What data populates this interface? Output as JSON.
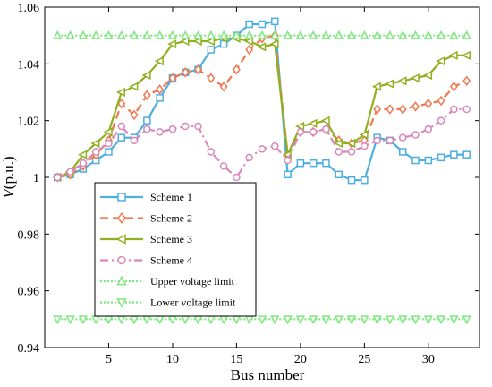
{
  "chart_data": {
    "type": "line",
    "title": "",
    "xlabel": "Bus number",
    "ylabel": "V(p.u.)",
    "xlim": [
      0,
      34
    ],
    "ylim": [
      0.94,
      1.06
    ],
    "xticks": [
      5,
      10,
      15,
      20,
      25,
      30
    ],
    "xtick_labels": [
      "5",
      "10",
      "15",
      "20",
      "25",
      "30"
    ],
    "yticks": [
      0.94,
      0.96,
      0.98,
      1.0,
      1.02,
      1.04,
      1.06
    ],
    "ytick_labels": [
      "0.94",
      "0.96",
      "0.98",
      "1",
      "1.02",
      "1.04",
      "1.06"
    ],
    "grid": false,
    "legend_position": "lower-left",
    "series": [
      {
        "name": "Scheme 1",
        "color": "#4daee0",
        "marker": "square",
        "dash": "solid",
        "x": [
          1,
          2,
          3,
          4,
          5,
          6,
          7,
          8,
          9,
          10,
          11,
          12,
          13,
          14,
          15,
          16,
          17,
          18,
          19,
          20,
          21,
          22,
          23,
          24,
          25,
          26,
          27,
          28,
          29,
          30,
          31,
          32,
          33
        ],
        "y": [
          1.0,
          1.001,
          1.003,
          1.006,
          1.009,
          1.014,
          1.014,
          1.02,
          1.028,
          1.035,
          1.037,
          1.038,
          1.045,
          1.047,
          1.05,
          1.054,
          1.054,
          1.055,
          1.001,
          1.005,
          1.005,
          1.005,
          1.001,
          0.999,
          0.999,
          1.014,
          1.013,
          1.009,
          1.006,
          1.006,
          1.007,
          1.008,
          1.008
        ]
      },
      {
        "name": "Scheme 2",
        "color": "#f07850",
        "marker": "diamond",
        "dash": "dashed",
        "x": [
          1,
          2,
          3,
          4,
          5,
          6,
          7,
          8,
          9,
          10,
          11,
          12,
          13,
          14,
          15,
          16,
          17,
          18,
          19,
          20,
          21,
          22,
          23,
          24,
          25,
          26,
          27,
          28,
          29,
          30,
          31,
          32,
          33
        ],
        "y": [
          1.0,
          1.001,
          1.004,
          1.008,
          1.013,
          1.026,
          1.022,
          1.029,
          1.031,
          1.035,
          1.037,
          1.038,
          1.035,
          1.032,
          1.038,
          1.045,
          1.049,
          1.05,
          1.008,
          1.016,
          1.016,
          1.017,
          1.013,
          1.012,
          1.013,
          1.024,
          1.024,
          1.024,
          1.025,
          1.026,
          1.027,
          1.032,
          1.034
        ]
      },
      {
        "name": "Scheme 3",
        "color": "#90b020",
        "marker": "triangle-left",
        "dash": "solid",
        "x": [
          1,
          2,
          3,
          4,
          5,
          6,
          7,
          8,
          9,
          10,
          11,
          12,
          13,
          14,
          15,
          16,
          17,
          18,
          19,
          20,
          21,
          22,
          23,
          24,
          25,
          26,
          27,
          28,
          29,
          30,
          31,
          32,
          33
        ],
        "y": [
          1.0,
          1.002,
          1.008,
          1.012,
          1.016,
          1.03,
          1.032,
          1.036,
          1.041,
          1.047,
          1.048,
          1.048,
          1.048,
          1.049,
          1.049,
          1.048,
          1.046,
          1.047,
          1.008,
          1.018,
          1.019,
          1.02,
          1.012,
          1.012,
          1.015,
          1.032,
          1.033,
          1.034,
          1.035,
          1.036,
          1.041,
          1.043,
          1.043
        ]
      },
      {
        "name": "Scheme 4",
        "color": "#d888b8",
        "marker": "circle",
        "dash": "dashdot",
        "x": [
          1,
          2,
          3,
          4,
          5,
          6,
          7,
          8,
          9,
          10,
          11,
          12,
          13,
          14,
          15,
          16,
          17,
          18,
          19,
          20,
          21,
          22,
          23,
          24,
          25,
          26,
          27,
          28,
          29,
          30,
          31,
          32,
          33
        ],
        "y": [
          1.0,
          1.002,
          1.005,
          1.009,
          1.012,
          1.018,
          1.013,
          1.017,
          1.016,
          1.017,
          1.018,
          1.018,
          1.009,
          1.004,
          1.0,
          1.007,
          1.01,
          1.011,
          1.006,
          1.016,
          1.016,
          1.017,
          1.009,
          1.009,
          1.011,
          1.013,
          1.013,
          1.014,
          1.015,
          1.017,
          1.02,
          1.024,
          1.024
        ]
      },
      {
        "name": "Upper voltage limit",
        "color": "#7de87d",
        "marker": "triangle-up",
        "dash": "dotted",
        "x": [
          1,
          2,
          3,
          4,
          5,
          6,
          7,
          8,
          9,
          10,
          11,
          12,
          13,
          14,
          15,
          16,
          17,
          18,
          19,
          20,
          21,
          22,
          23,
          24,
          25,
          26,
          27,
          28,
          29,
          30,
          31,
          32,
          33
        ],
        "y": [
          1.05,
          1.05,
          1.05,
          1.05,
          1.05,
          1.05,
          1.05,
          1.05,
          1.05,
          1.05,
          1.05,
          1.05,
          1.05,
          1.05,
          1.05,
          1.05,
          1.05,
          1.05,
          1.05,
          1.05,
          1.05,
          1.05,
          1.05,
          1.05,
          1.05,
          1.05,
          1.05,
          1.05,
          1.05,
          1.05,
          1.05,
          1.05,
          1.05
        ]
      },
      {
        "name": "Lower voltage limit",
        "color": "#7de87d",
        "marker": "triangle-down",
        "dash": "dotted",
        "x": [
          1,
          2,
          3,
          4,
          5,
          6,
          7,
          8,
          9,
          10,
          11,
          12,
          13,
          14,
          15,
          16,
          17,
          18,
          19,
          20,
          21,
          22,
          23,
          24,
          25,
          26,
          27,
          28,
          29,
          30,
          31,
          32,
          33
        ],
        "y": [
          0.95,
          0.95,
          0.95,
          0.95,
          0.95,
          0.95,
          0.95,
          0.95,
          0.95,
          0.95,
          0.95,
          0.95,
          0.95,
          0.95,
          0.95,
          0.95,
          0.95,
          0.95,
          0.95,
          0.95,
          0.95,
          0.95,
          0.95,
          0.95,
          0.95,
          0.95,
          0.95,
          0.95,
          0.95,
          0.95,
          0.95,
          0.95,
          0.95
        ]
      }
    ]
  }
}
